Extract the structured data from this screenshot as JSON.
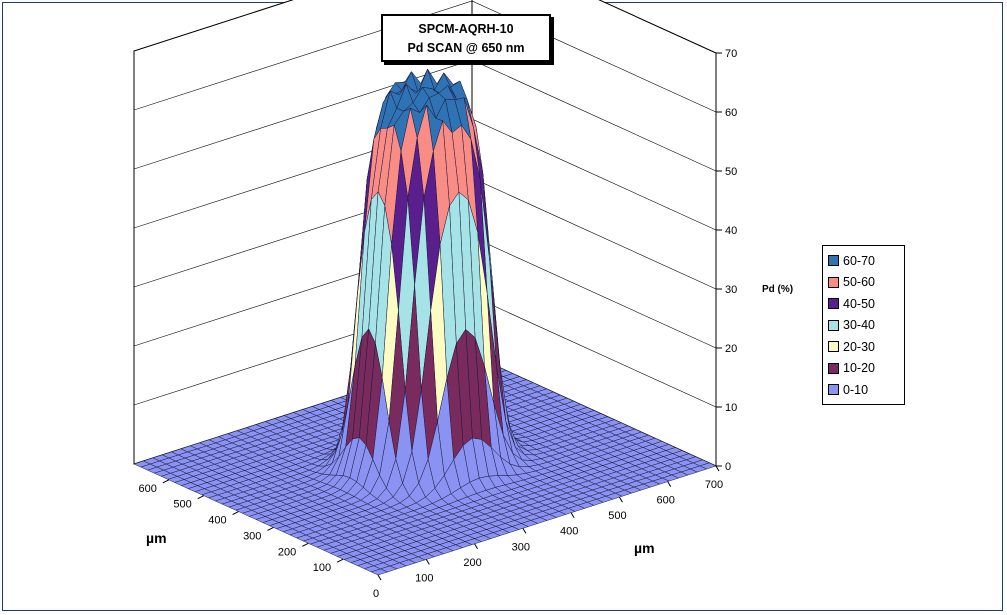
{
  "chart_data": {
    "type": "surface3d",
    "title": [
      "SPCM-AQRH-10",
      "Pd SCAN @ 650 nm"
    ],
    "zlabel": "Pd (%)",
    "xlabel": "µm",
    "ylabel": "µm",
    "zlim": [
      0,
      70
    ],
    "z_ticks": [
      "0",
      "10",
      "20",
      "30",
      "40",
      "50",
      "60",
      "70"
    ],
    "x_ticks": [
      "0",
      "100",
      "200",
      "300",
      "400",
      "500",
      "600",
      "700"
    ],
    "y_ticks": [
      "100",
      "200",
      "300",
      "400",
      "500",
      "600"
    ],
    "legend": [
      {
        "label": "60-70",
        "color": "#2f73b5"
      },
      {
        "label": "50-60",
        "color": "#fa8c86"
      },
      {
        "label": "40-50",
        "color": "#5a1f8c"
      },
      {
        "label": "30-40",
        "color": "#a6e3e6"
      },
      {
        "label": "20-30",
        "color": "#fbfbc2"
      },
      {
        "label": "10-20",
        "color": "#7a2b5e"
      },
      {
        "label": "0-10",
        "color": "#8a92f2"
      }
    ],
    "surface": {
      "plateau_pd_percent": 64,
      "floor_pd_percent": 0,
      "plateau_diameter_um": 200,
      "center_um": [
        350,
        350
      ]
    }
  }
}
